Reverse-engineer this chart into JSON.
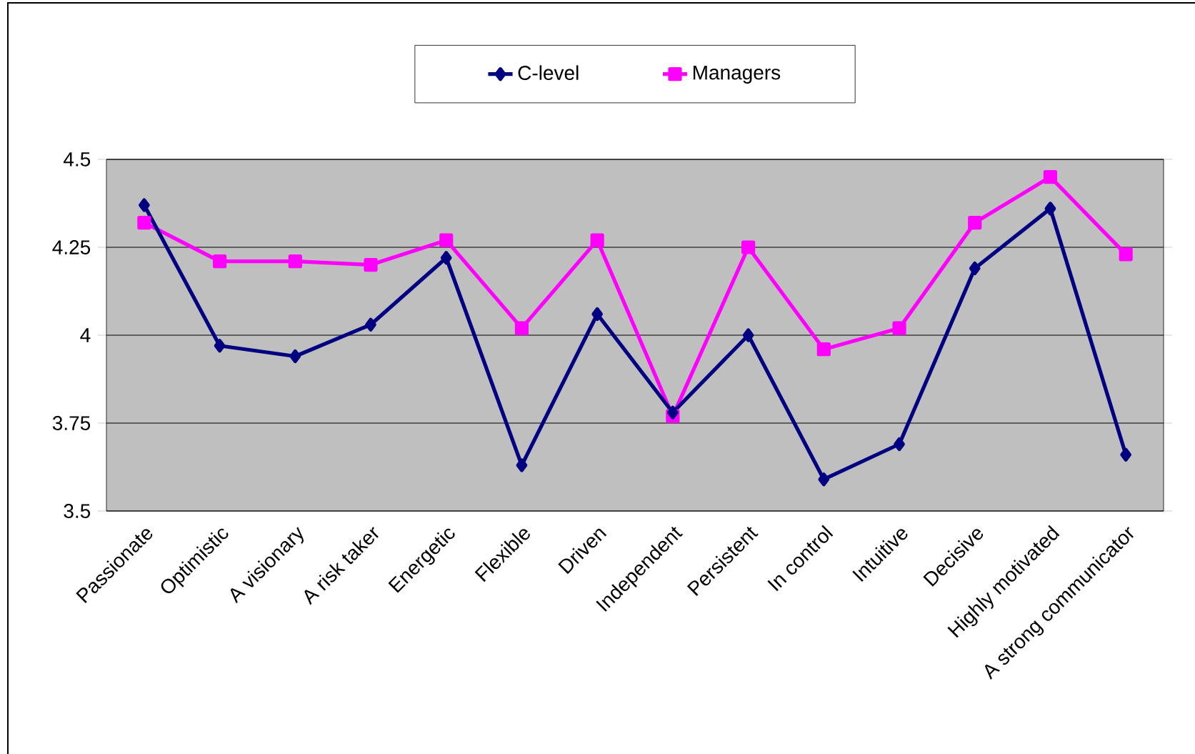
{
  "chart_data": {
    "type": "line",
    "categories": [
      "Passionate",
      "Optimistic",
      "A visionary",
      "A risk taker",
      "Energetic",
      "Flexible",
      "Driven",
      "Independent",
      "Persistent",
      "In control",
      "Intuitive",
      "Decisive",
      "Highly motivated",
      "A strong communicator"
    ],
    "series": [
      {
        "name": "C-level",
        "color": "#000080",
        "marker": "diamond",
        "values": [
          4.37,
          3.97,
          3.94,
          4.03,
          4.22,
          3.63,
          4.06,
          3.78,
          4.0,
          3.59,
          3.69,
          4.19,
          4.36,
          3.66
        ]
      },
      {
        "name": "Managers",
        "color": "#ff00ff",
        "marker": "square",
        "values": [
          4.32,
          4.21,
          4.21,
          4.2,
          4.27,
          4.02,
          4.27,
          3.77,
          4.25,
          3.96,
          4.02,
          4.32,
          4.45,
          4.23
        ]
      }
    ],
    "ylim": [
      3.5,
      4.5
    ],
    "yticks": [
      3.5,
      3.75,
      4,
      4.25,
      4.5
    ],
    "grid": "y",
    "legend": "top",
    "line_style": "solid"
  }
}
